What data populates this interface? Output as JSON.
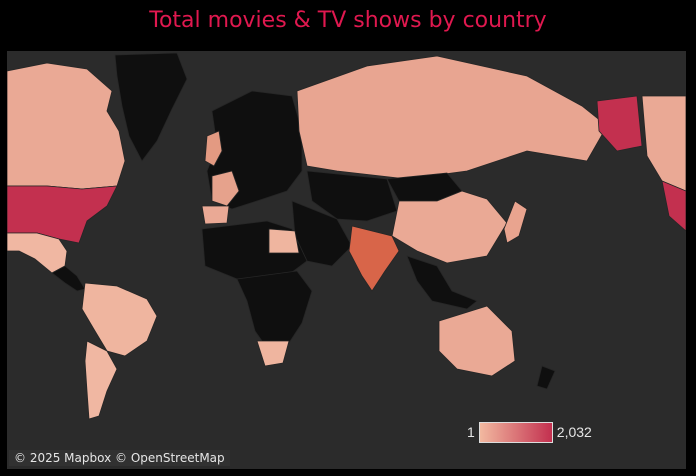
{
  "title": "Total movies & TV shows by country",
  "attribution": "© 2025 Mapbox © OpenStreetMap",
  "legend": {
    "min_label": "1",
    "max_label": "2,032",
    "min": 1,
    "max": 2032,
    "color_low": "#f2b9a0",
    "color_high": "#c3304f"
  },
  "colors": {
    "background": "#000000",
    "ocean": "#2b2b2b",
    "no_data": "#0f0f0f",
    "title": "#e0184f"
  },
  "regions": [
    {
      "name": "United States",
      "count": 2032,
      "color": "#c3304f"
    },
    {
      "name": "India",
      "count": 900,
      "color": "#d86549"
    },
    {
      "name": "Canada",
      "count": 200,
      "color": "#eaa995"
    },
    {
      "name": "Mexico",
      "count": 100,
      "color": "#f0b7a2"
    },
    {
      "name": "Brazil",
      "count": 80,
      "color": "#efb59f"
    },
    {
      "name": "Argentina",
      "count": 60,
      "color": "#f0b7a2"
    },
    {
      "name": "Russia",
      "count": 30,
      "color": "#e8a591"
    },
    {
      "name": "China",
      "count": 120,
      "color": "#eaa995"
    },
    {
      "name": "Japan",
      "count": 200,
      "color": "#e9a48f"
    },
    {
      "name": "Australia",
      "count": 120,
      "color": "#eaa995"
    },
    {
      "name": "United Kingdom",
      "count": 400,
      "color": "#e39a82"
    },
    {
      "name": "France",
      "count": 300,
      "color": "#e6a28c"
    },
    {
      "name": "Spain",
      "count": 150,
      "color": "#eaa995"
    },
    {
      "name": "Egypt",
      "count": 80,
      "color": "#efb59f"
    },
    {
      "name": "South Africa",
      "count": 50,
      "color": "#efb59f"
    }
  ]
}
